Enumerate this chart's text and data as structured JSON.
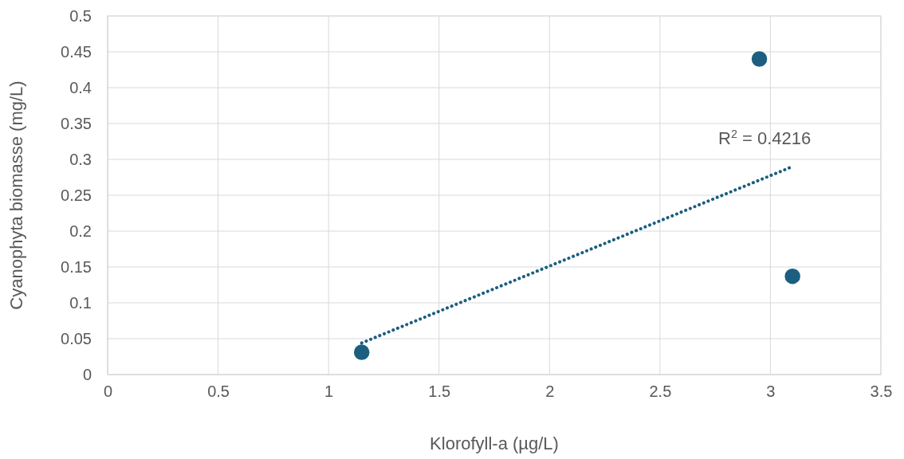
{
  "chart_data": {
    "type": "scatter",
    "xlabel": "Klorofyll-a (µg/L)",
    "ylabel": "Cyanophyta biomasse (mg/L)",
    "xlim": [
      0,
      3.5
    ],
    "xticks": [
      0,
      0.5,
      1,
      1.5,
      2,
      2.5,
      3,
      3.5
    ],
    "ylim": [
      0,
      0.5
    ],
    "yticks": [
      0,
      0.05,
      0.1,
      0.15,
      0.2,
      0.25,
      0.3,
      0.35,
      0.4,
      0.45,
      0.5
    ],
    "grid": true,
    "marker": "circle",
    "series": [
      {
        "color": "#1b5e80",
        "x": [
          1.15,
          2.95,
          3.1
        ],
        "values": [
          0.031,
          0.44,
          0.137
        ]
      },
      {
        "type": "line",
        "color": "#1b5e80",
        "line_style": "dotted",
        "marker": "none",
        "x": [
          1.15,
          3.1
        ],
        "values": [
          0.044,
          0.29
        ]
      }
    ],
    "annotations": [
      "R$^{2}$ = 0.4216"
    ]
  }
}
